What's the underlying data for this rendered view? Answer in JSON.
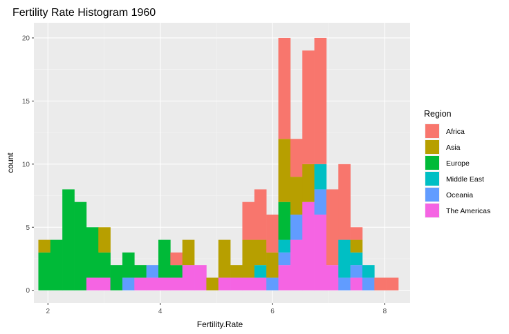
{
  "chart_data": {
    "type": "bar",
    "subtype": "stacked-histogram",
    "title": "Fertility Rate Histogram 1960",
    "xlabel": "Fertility.Rate",
    "ylabel": "count",
    "xlim": [
      1.75,
      8.45
    ],
    "ylim": [
      -1,
      21.2
    ],
    "xticks": [
      2,
      4,
      6,
      8
    ],
    "yticks": [
      0,
      5,
      10,
      15,
      20
    ],
    "bin_width": 0.2137,
    "bin_starts": [
      1.8297,
      2.0434,
      2.2571,
      2.4708,
      2.6845,
      2.8982,
      3.1119,
      3.3256,
      3.5393,
      3.753,
      3.9667,
      4.1804,
      4.3941,
      4.6078,
      4.8215,
      5.0352,
      5.2489,
      5.4626,
      5.6763,
      5.89,
      6.1037,
      6.3174,
      6.5311,
      6.7448,
      6.9585,
      7.1722,
      7.3859,
      7.5996,
      7.8133,
      8.027
    ],
    "grid": true,
    "legend_title": "Region",
    "legend_position": "right",
    "series": [
      {
        "name": "The Americas",
        "color": "#F564E3",
        "values": [
          0,
          0,
          0,
          0,
          1,
          1,
          0,
          0,
          1,
          1,
          1,
          1,
          2,
          2,
          0,
          1,
          1,
          1,
          1,
          0,
          2,
          4,
          7,
          6,
          2,
          0,
          1,
          0,
          0,
          0
        ]
      },
      {
        "name": "Oceania",
        "color": "#619CFF",
        "values": [
          0,
          0,
          0,
          0,
          0,
          0,
          0,
          1,
          0,
          1,
          0,
          0,
          0,
          0,
          0,
          0,
          0,
          0,
          0,
          1,
          1,
          2,
          0,
          2,
          0,
          1,
          1,
          1,
          0,
          0
        ]
      },
      {
        "name": "Middle East",
        "color": "#00BFC4",
        "values": [
          0,
          0,
          0,
          0,
          0,
          0,
          0,
          0,
          0,
          0,
          0,
          0,
          0,
          0,
          0,
          0,
          0,
          0,
          1,
          0,
          1,
          0,
          0,
          2,
          0,
          3,
          1,
          1,
          0,
          0
        ]
      },
      {
        "name": "Europe",
        "color": "#00BA38",
        "values": [
          3,
          4,
          8,
          7,
          4,
          2,
          2,
          2,
          1,
          0,
          3,
          1,
          0,
          0,
          0,
          0,
          0,
          0,
          0,
          0,
          3,
          0,
          0,
          0,
          0,
          0,
          0,
          0,
          0,
          0
        ]
      },
      {
        "name": "Asia",
        "color": "#B79F00",
        "values": [
          1,
          0,
          0,
          0,
          0,
          2,
          0,
          0,
          0,
          0,
          0,
          0,
          2,
          0,
          1,
          3,
          1,
          3,
          2,
          2,
          5,
          3,
          3,
          0,
          0,
          0,
          1,
          0,
          0,
          0
        ]
      },
      {
        "name": "Africa",
        "color": "#F8766D",
        "values": [
          0,
          0,
          0,
          0,
          0,
          0,
          0,
          0,
          0,
          0,
          0,
          1,
          0,
          0,
          0,
          0,
          0,
          3,
          4,
          3,
          8,
          3,
          9,
          10,
          6,
          6,
          1,
          0,
          1,
          1
        ]
      }
    ],
    "legend_order": [
      "Africa",
      "Asia",
      "Europe",
      "Middle East",
      "Oceania",
      "The Americas"
    ]
  }
}
